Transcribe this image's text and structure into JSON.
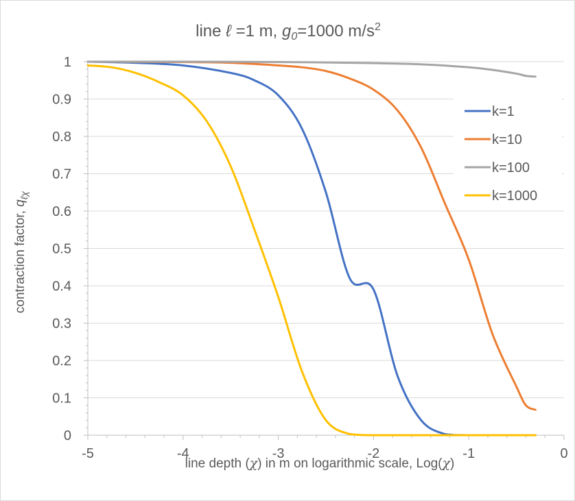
{
  "chart_data": {
    "type": "line",
    "title": {
      "part1": "line ",
      "ell": "ℓ",
      "part2": " =1 m, ",
      "g": "g",
      "g_sub": "0",
      "part3": "=1000 m/s",
      "sup": "2"
    },
    "xlabel": {
      "part1": "line depth (",
      "chi1": "χ",
      "part2": ") in m on logarithmic scale, Log(",
      "chi2": "χ",
      "part3": ")"
    },
    "ylabel": {
      "part1": "contraction factor, ",
      "q": "q",
      "sub": "ℓχ"
    },
    "xlim": [
      -5,
      0
    ],
    "ylim": [
      0,
      1
    ],
    "x_ticks": [
      "-5",
      "-4",
      "-3",
      "-2",
      "-1",
      "0"
    ],
    "y_ticks": [
      "0",
      "0.1",
      "0.2",
      "0.3",
      "0.4",
      "0.5",
      "0.6",
      "0.7",
      "0.8",
      "0.9",
      "1"
    ],
    "grid": "horizontal",
    "legend_position": "right",
    "series": [
      {
        "name": "k=1",
        "color": "#4472C4",
        "x": [
          -5,
          -4.5,
          -4,
          -3.5,
          -3.25,
          -3,
          -2.75,
          -2.5,
          -2.25,
          -2,
          -1.75,
          -1.5,
          -1.25,
          -1,
          -0.3
        ],
        "y": [
          1.0,
          0.997,
          0.99,
          0.97,
          0.95,
          0.91,
          0.82,
          0.65,
          0.42,
          0.39,
          0.16,
          0.04,
          0.003,
          0.0,
          0.0
        ]
      },
      {
        "name": "k=10",
        "color": "#ED7D31",
        "x": [
          -5,
          -4,
          -3.5,
          -3,
          -2.75,
          -2.5,
          -2.25,
          -2,
          -1.75,
          -1.5,
          -1.25,
          -1,
          -0.75,
          -0.5,
          -0.4,
          -0.3
        ],
        "y": [
          1.0,
          0.999,
          0.997,
          0.99,
          0.985,
          0.975,
          0.955,
          0.925,
          0.87,
          0.77,
          0.62,
          0.47,
          0.27,
          0.13,
          0.08,
          0.068
        ]
      },
      {
        "name": "k=100",
        "color": "#A5A5A5",
        "x": [
          -5,
          -4,
          -3,
          -2.5,
          -2,
          -1.5,
          -1,
          -0.75,
          -0.5,
          -0.4,
          -0.3
        ],
        "y": [
          1.0,
          1.0,
          0.999,
          0.998,
          0.996,
          0.993,
          0.985,
          0.978,
          0.968,
          0.962,
          0.96
        ]
      },
      {
        "name": "k=1000",
        "color": "#FFC000",
        "x": [
          -5,
          -4.75,
          -4.5,
          -4.25,
          -4,
          -3.75,
          -3.5,
          -3.25,
          -3,
          -2.75,
          -2.5,
          -2.25,
          -2,
          -1.5,
          -1,
          -0.3
        ],
        "y": [
          0.99,
          0.985,
          0.97,
          0.945,
          0.91,
          0.84,
          0.72,
          0.55,
          0.37,
          0.17,
          0.04,
          0.003,
          0.0,
          0.0,
          0.0,
          0.0
        ]
      }
    ]
  }
}
